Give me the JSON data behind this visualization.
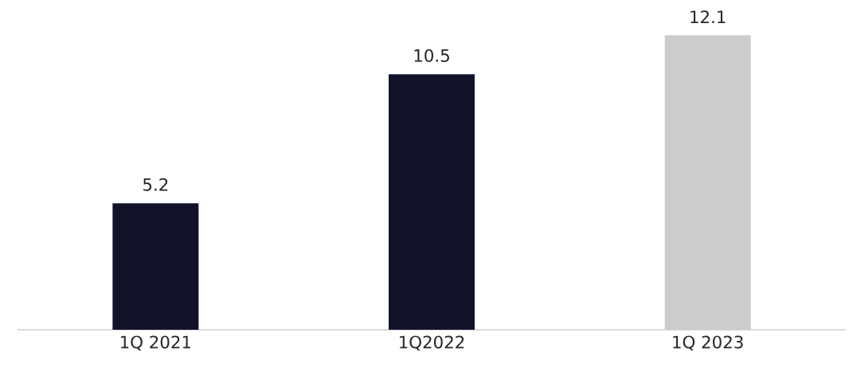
{
  "chart_data": {
    "type": "bar",
    "categories": [
      "1Q 2021",
      "1Q2022",
      "1Q 2023"
    ],
    "values": [
      5.2,
      10.5,
      12.1
    ],
    "colors": [
      "#12132b",
      "#12132b",
      "#cdcccd"
    ],
    "data_labels": true
  }
}
